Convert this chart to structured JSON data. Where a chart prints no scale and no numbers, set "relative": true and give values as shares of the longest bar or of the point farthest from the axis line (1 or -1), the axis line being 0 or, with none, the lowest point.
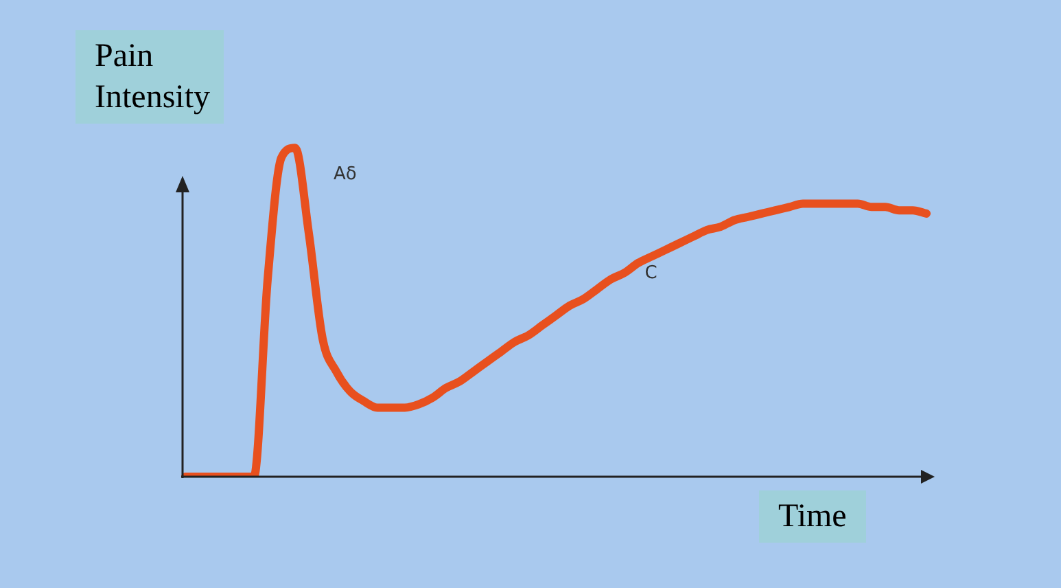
{
  "chart_data": {
    "type": "line",
    "relative": true,
    "xlabel": "Time",
    "ylabel": "Pain Intensity",
    "annotations": [
      "Aδ",
      "C"
    ],
    "categories": [
      null,
      null,
      null,
      null,
      null,
      null,
      null,
      null,
      null,
      null,
      null,
      null,
      null,
      null,
      null,
      null,
      null,
      null,
      null,
      null,
      null,
      null,
      null,
      null,
      null,
      null,
      null,
      null,
      null,
      null,
      null,
      null,
      null,
      null,
      null,
      null,
      null,
      null,
      null,
      null,
      null,
      null,
      null,
      null,
      null,
      null,
      null,
      null,
      null,
      null,
      null,
      null,
      null,
      null,
      null
    ],
    "series": [
      {
        "color": "#e8501e",
        "values": [
          0,
          0,
          0,
          0,
          0,
          0,
          0.6,
          0.97,
          1,
          0.74,
          0.42,
          0.32,
          0.26,
          0.23,
          0.21,
          0.21,
          0.21,
          0.22,
          0.24,
          0.27,
          0.29,
          0.32,
          0.35,
          0.38,
          0.41,
          0.43,
          0.46,
          0.49,
          0.52,
          0.54,
          0.57,
          0.6,
          0.62,
          0.65,
          0.67,
          0.69,
          0.71,
          0.73,
          0.75,
          0.76,
          0.78,
          0.79,
          0.8,
          0.81,
          0.82,
          0.83,
          0.83,
          0.83,
          0.83,
          0.83,
          0.82,
          0.82,
          0.81,
          0.81,
          0.8
        ]
      }
    ],
    "legend": false,
    "marker": "none",
    "line_style": "solid"
  }
}
